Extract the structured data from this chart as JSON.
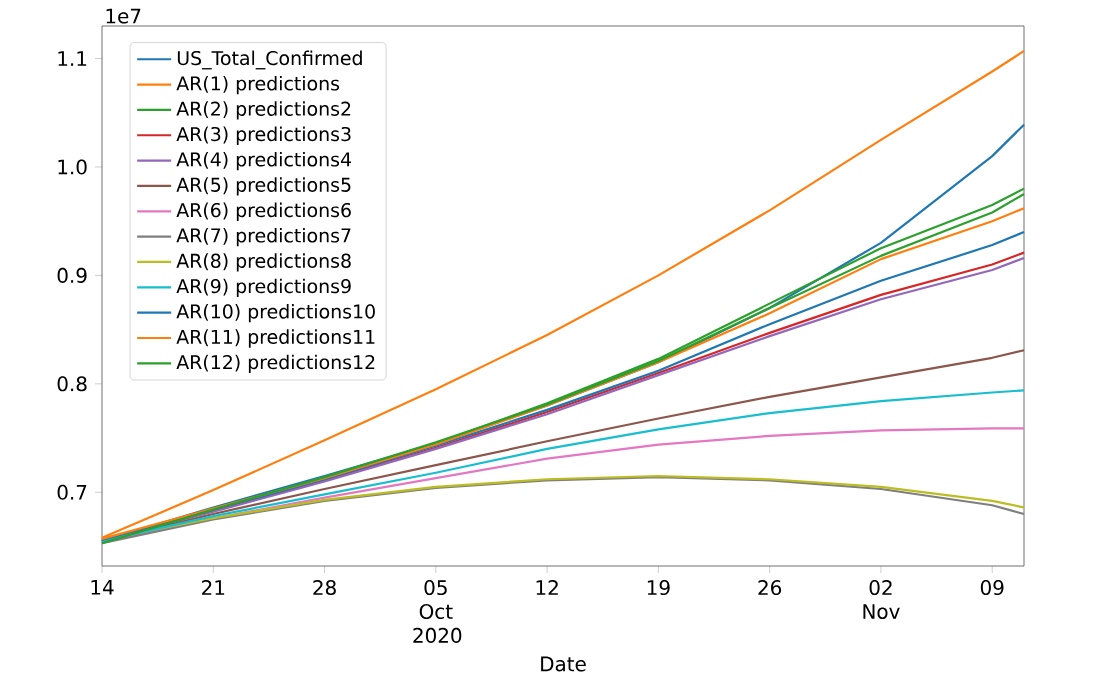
{
  "chart_data": {
    "type": "line",
    "xlabel": "Date",
    "annotations": [
      "1e7"
    ],
    "x": [
      "2020-09-14",
      "2020-09-21",
      "2020-09-28",
      "2020-10-05",
      "2020-10-12",
      "2020-10-19",
      "2020-10-26",
      "2020-11-02",
      "2020-11-09",
      "2020-11-11"
    ],
    "xlim": [
      "2020-09-14",
      "2020-11-11"
    ],
    "xticks": [
      {
        "value": "2020-09-14",
        "label": "14"
      },
      {
        "value": "2020-09-21",
        "label": "21"
      },
      {
        "value": "2020-09-28",
        "label": "28"
      },
      {
        "value": "2020-10-05",
        "label": "05 Oct 2020"
      },
      {
        "value": "2020-10-12",
        "label": "12"
      },
      {
        "value": "2020-10-19",
        "label": "19"
      },
      {
        "value": "2020-10-26",
        "label": "26"
      },
      {
        "value": "2020-11-02",
        "label": "02 Nov"
      },
      {
        "value": "2020-11-09",
        "label": "09"
      }
    ],
    "ylim": [
      0.632,
      1.13
    ],
    "yticks": [
      {
        "value": 0.7,
        "label": "0.7"
      },
      {
        "value": 0.8,
        "label": "0.8"
      },
      {
        "value": 0.9,
        "label": "0.9"
      },
      {
        "value": 1.0,
        "label": "1.0"
      },
      {
        "value": 1.1,
        "label": "1.1"
      }
    ],
    "legend": "top left",
    "marker": "none",
    "line_style": "solid",
    "grid": false,
    "series": [
      {
        "name": "US_Total_Confirmed",
        "color": "#1f77b4",
        "values": [
          0.655,
          0.686,
          0.715,
          0.745,
          0.78,
          0.82,
          0.87,
          0.93,
          1.01,
          1.039
        ]
      },
      {
        "name": "AR(1) predictions",
        "color": "#ff7f0e",
        "values": [
          0.658,
          0.702,
          0.748,
          0.795,
          0.845,
          0.9,
          0.96,
          1.025,
          1.088,
          1.107
        ]
      },
      {
        "name": "AR(2) predictions2",
        "color": "#2ca02c",
        "values": [
          0.654,
          0.685,
          0.713,
          0.745,
          0.782,
          0.823,
          0.874,
          0.925,
          0.965,
          0.98
        ]
      },
      {
        "name": "AR(3) predictions3",
        "color": "#d62728",
        "values": [
          0.655,
          0.683,
          0.711,
          0.741,
          0.774,
          0.81,
          0.847,
          0.882,
          0.91,
          0.921
        ]
      },
      {
        "name": "AR(4) predictions4",
        "color": "#9467bd",
        "values": [
          0.656,
          0.682,
          0.71,
          0.74,
          0.772,
          0.808,
          0.844,
          0.878,
          0.905,
          0.916
        ]
      },
      {
        "name": "AR(5) predictions5",
        "color": "#8c564b",
        "values": [
          0.655,
          0.68,
          0.703,
          0.725,
          0.747,
          0.768,
          0.788,
          0.806,
          0.824,
          0.831
        ]
      },
      {
        "name": "AR(6) predictions6",
        "color": "#e377c2",
        "values": [
          0.654,
          0.676,
          0.695,
          0.713,
          0.731,
          0.744,
          0.752,
          0.757,
          0.759,
          0.759
        ]
      },
      {
        "name": "AR(7) predictions7",
        "color": "#7f7f7f",
        "values": [
          0.653,
          0.675,
          0.692,
          0.704,
          0.711,
          0.714,
          0.711,
          0.703,
          0.688,
          0.68
        ]
      },
      {
        "name": "AR(8) predictions8",
        "color": "#bcbd22",
        "values": [
          0.656,
          0.676,
          0.693,
          0.705,
          0.712,
          0.715,
          0.712,
          0.705,
          0.692,
          0.686
        ]
      },
      {
        "name": "AR(9) predictions9",
        "color": "#17becf",
        "values": [
          0.655,
          0.678,
          0.698,
          0.718,
          0.74,
          0.758,
          0.773,
          0.784,
          0.792,
          0.794
        ]
      },
      {
        "name": "AR(10) predictions10",
        "color": "#1f77b4",
        "values": [
          0.656,
          0.684,
          0.712,
          0.743,
          0.776,
          0.812,
          0.855,
          0.895,
          0.928,
          0.94
        ]
      },
      {
        "name": "AR(11) predictions11",
        "color": "#ff7f0e",
        "values": [
          0.657,
          0.685,
          0.713,
          0.744,
          0.78,
          0.82,
          0.865,
          0.915,
          0.95,
          0.962
        ]
      },
      {
        "name": "AR(12) predictions12",
        "color": "#2ca02c",
        "values": [
          0.653,
          0.684,
          0.714,
          0.746,
          0.781,
          0.821,
          0.87,
          0.918,
          0.958,
          0.975
        ]
      }
    ]
  }
}
